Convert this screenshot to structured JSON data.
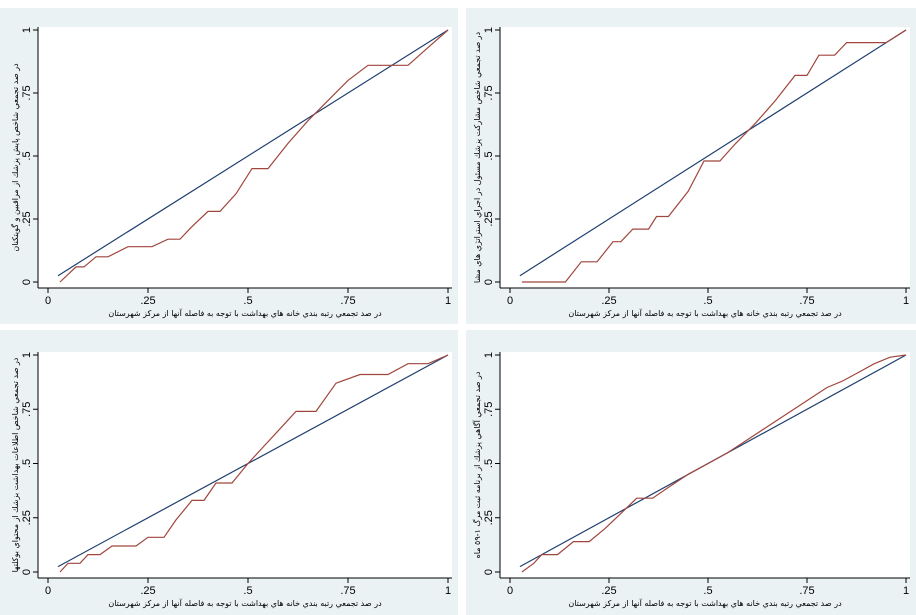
{
  "chart_data": [
    {
      "type": "line",
      "xlabel": "در صد تجمعي رتبه بندي خانه هاي بهداشت با توجه به فاصله آنها از مركز شهرستان",
      "ylabel": "در صد تجمعي شاخص پايش پزشك از مراقبين و گويتكنان",
      "xlim": [
        0,
        1
      ],
      "ylim": [
        0,
        1
      ],
      "xticks": [
        {
          "v": 0,
          "label": "0"
        },
        {
          "v": 0.25,
          "label": ".25"
        },
        {
          "v": 0.5,
          "label": ".5"
        },
        {
          "v": 0.75,
          "label": ".75"
        },
        {
          "v": 1,
          "label": "1"
        }
      ],
      "yticks": [
        {
          "v": 0,
          "label": "0"
        },
        {
          "v": 0.25,
          "label": ".25"
        },
        {
          "v": 0.5,
          "label": ".5"
        },
        {
          "v": 0.75,
          "label": ".75"
        },
        {
          "v": 1,
          "label": "1"
        }
      ],
      "series": [
        {
          "color": "#1f3f6e",
          "x": [
            0.025,
            1
          ],
          "y": [
            0.025,
            1
          ]
        },
        {
          "color": "#a0463c",
          "x": [
            0.03,
            0.07,
            0.09,
            0.12,
            0.15,
            0.2,
            0.23,
            0.26,
            0.3,
            0.33,
            0.36,
            0.4,
            0.43,
            0.47,
            0.51,
            0.55,
            0.6,
            0.65,
            0.7,
            0.75,
            0.8,
            0.86,
            0.9,
            0.95,
            1.0
          ],
          "y": [
            0.0,
            0.06,
            0.06,
            0.1,
            0.1,
            0.14,
            0.14,
            0.14,
            0.17,
            0.17,
            0.22,
            0.28,
            0.28,
            0.35,
            0.45,
            0.45,
            0.55,
            0.64,
            0.72,
            0.8,
            0.86,
            0.86,
            0.86,
            0.93,
            1.0
          ]
        }
      ]
    },
    {
      "type": "line",
      "xlabel": "در صد تجمعي رتبه بندي خانه هاي بهداشت با توجه به فاصله آنها از مركز شهرستان",
      "ylabel": "در صد تجمعي شاخص مشاركت پزشك مسئول در اجراي استراتژي هاي مشا",
      "xlim": [
        0,
        1
      ],
      "ylim": [
        0,
        1
      ],
      "xticks": [
        {
          "v": 0,
          "label": "0"
        },
        {
          "v": 0.25,
          "label": ".25"
        },
        {
          "v": 0.5,
          "label": ".5"
        },
        {
          "v": 0.75,
          "label": ".75"
        },
        {
          "v": 1,
          "label": "1"
        }
      ],
      "yticks": [
        {
          "v": 0,
          "label": "0"
        },
        {
          "v": 0.25,
          "label": ".25"
        },
        {
          "v": 0.5,
          "label": ".5"
        },
        {
          "v": 0.75,
          "label": ".75"
        },
        {
          "v": 1,
          "label": "1"
        }
      ],
      "series": [
        {
          "color": "#1f3f6e",
          "x": [
            0.025,
            1
          ],
          "y": [
            0.025,
            1
          ]
        },
        {
          "color": "#a0463c",
          "x": [
            0.03,
            0.08,
            0.14,
            0.18,
            0.22,
            0.26,
            0.28,
            0.31,
            0.35,
            0.37,
            0.4,
            0.45,
            0.49,
            0.53,
            0.57,
            0.62,
            0.67,
            0.72,
            0.75,
            0.78,
            0.82,
            0.85,
            0.9,
            0.95,
            1.0
          ],
          "y": [
            0.0,
            0.0,
            0.0,
            0.08,
            0.08,
            0.16,
            0.16,
            0.21,
            0.21,
            0.26,
            0.26,
            0.36,
            0.48,
            0.48,
            0.55,
            0.63,
            0.72,
            0.82,
            0.82,
            0.9,
            0.9,
            0.95,
            0.95,
            0.95,
            1.0
          ]
        }
      ]
    },
    {
      "type": "line",
      "xlabel": "در صد تجمعي رتبه بندي خانه هاي بهداشت با توجه به فاصله آنها از مركز شهرستان",
      "ylabel": "در صد تجمعي شاخص اطلاعات بهداشت بزشك از محتواي بوكلتها",
      "xlim": [
        0,
        1
      ],
      "ylim": [
        0,
        1
      ],
      "xticks": [
        {
          "v": 0,
          "label": "0"
        },
        {
          "v": 0.25,
          "label": ".25"
        },
        {
          "v": 0.5,
          "label": ".5"
        },
        {
          "v": 0.75,
          "label": ".75"
        },
        {
          "v": 1,
          "label": "1"
        }
      ],
      "yticks": [
        {
          "v": 0,
          "label": "0"
        },
        {
          "v": 0.25,
          "label": ".25"
        },
        {
          "v": 0.5,
          "label": ".5"
        },
        {
          "v": 0.75,
          "label": ".75"
        },
        {
          "v": 1,
          "label": "1"
        }
      ],
      "series": [
        {
          "color": "#1f3f6e",
          "x": [
            0.025,
            1
          ],
          "y": [
            0.025,
            1
          ]
        },
        {
          "color": "#a0463c",
          "x": [
            0.03,
            0.05,
            0.08,
            0.1,
            0.13,
            0.16,
            0.19,
            0.22,
            0.25,
            0.29,
            0.32,
            0.36,
            0.39,
            0.42,
            0.46,
            0.5,
            0.54,
            0.58,
            0.62,
            0.67,
            0.72,
            0.78,
            0.85,
            0.9,
            0.95,
            1.0
          ],
          "y": [
            0.0,
            0.04,
            0.04,
            0.08,
            0.08,
            0.12,
            0.12,
            0.12,
            0.16,
            0.16,
            0.24,
            0.33,
            0.33,
            0.41,
            0.41,
            0.5,
            0.58,
            0.66,
            0.74,
            0.74,
            0.87,
            0.91,
            0.91,
            0.96,
            0.96,
            1.0
          ]
        }
      ]
    },
    {
      "type": "line",
      "xlabel": "در صد تجمعي رتبه بندي خانه هاي بهداشت با توجه به فاصله آنها از مركز شهرستان",
      "ylabel": "در صد تجمعي آگاهي پزشك از برنامه ثبت مرگ ١-٥٩ ماه",
      "xlim": [
        0,
        1
      ],
      "ylim": [
        0,
        1
      ],
      "xticks": [
        {
          "v": 0,
          "label": "0"
        },
        {
          "v": 0.25,
          "label": ".25"
        },
        {
          "v": 0.5,
          "label": ".5"
        },
        {
          "v": 0.75,
          "label": ".75"
        },
        {
          "v": 1,
          "label": "1"
        }
      ],
      "yticks": [
        {
          "v": 0,
          "label": "0"
        },
        {
          "v": 0.25,
          "label": ".25"
        },
        {
          "v": 0.5,
          "label": ".5"
        },
        {
          "v": 0.75,
          "label": ".75"
        },
        {
          "v": 1,
          "label": "1"
        }
      ],
      "series": [
        {
          "color": "#1f3f6e",
          "x": [
            0.025,
            1
          ],
          "y": [
            0.025,
            1
          ]
        },
        {
          "color": "#a0463c",
          "x": [
            0.03,
            0.06,
            0.08,
            0.12,
            0.16,
            0.2,
            0.24,
            0.28,
            0.32,
            0.36,
            0.4,
            0.45,
            0.5,
            0.55,
            0.6,
            0.65,
            0.7,
            0.75,
            0.8,
            0.84,
            0.88,
            0.92,
            0.96,
            1.0
          ],
          "y": [
            0.0,
            0.04,
            0.08,
            0.08,
            0.14,
            0.14,
            0.2,
            0.27,
            0.34,
            0.34,
            0.39,
            0.45,
            0.5,
            0.55,
            0.61,
            0.67,
            0.73,
            0.79,
            0.85,
            0.88,
            0.92,
            0.96,
            0.99,
            1.0
          ]
        }
      ]
    }
  ]
}
